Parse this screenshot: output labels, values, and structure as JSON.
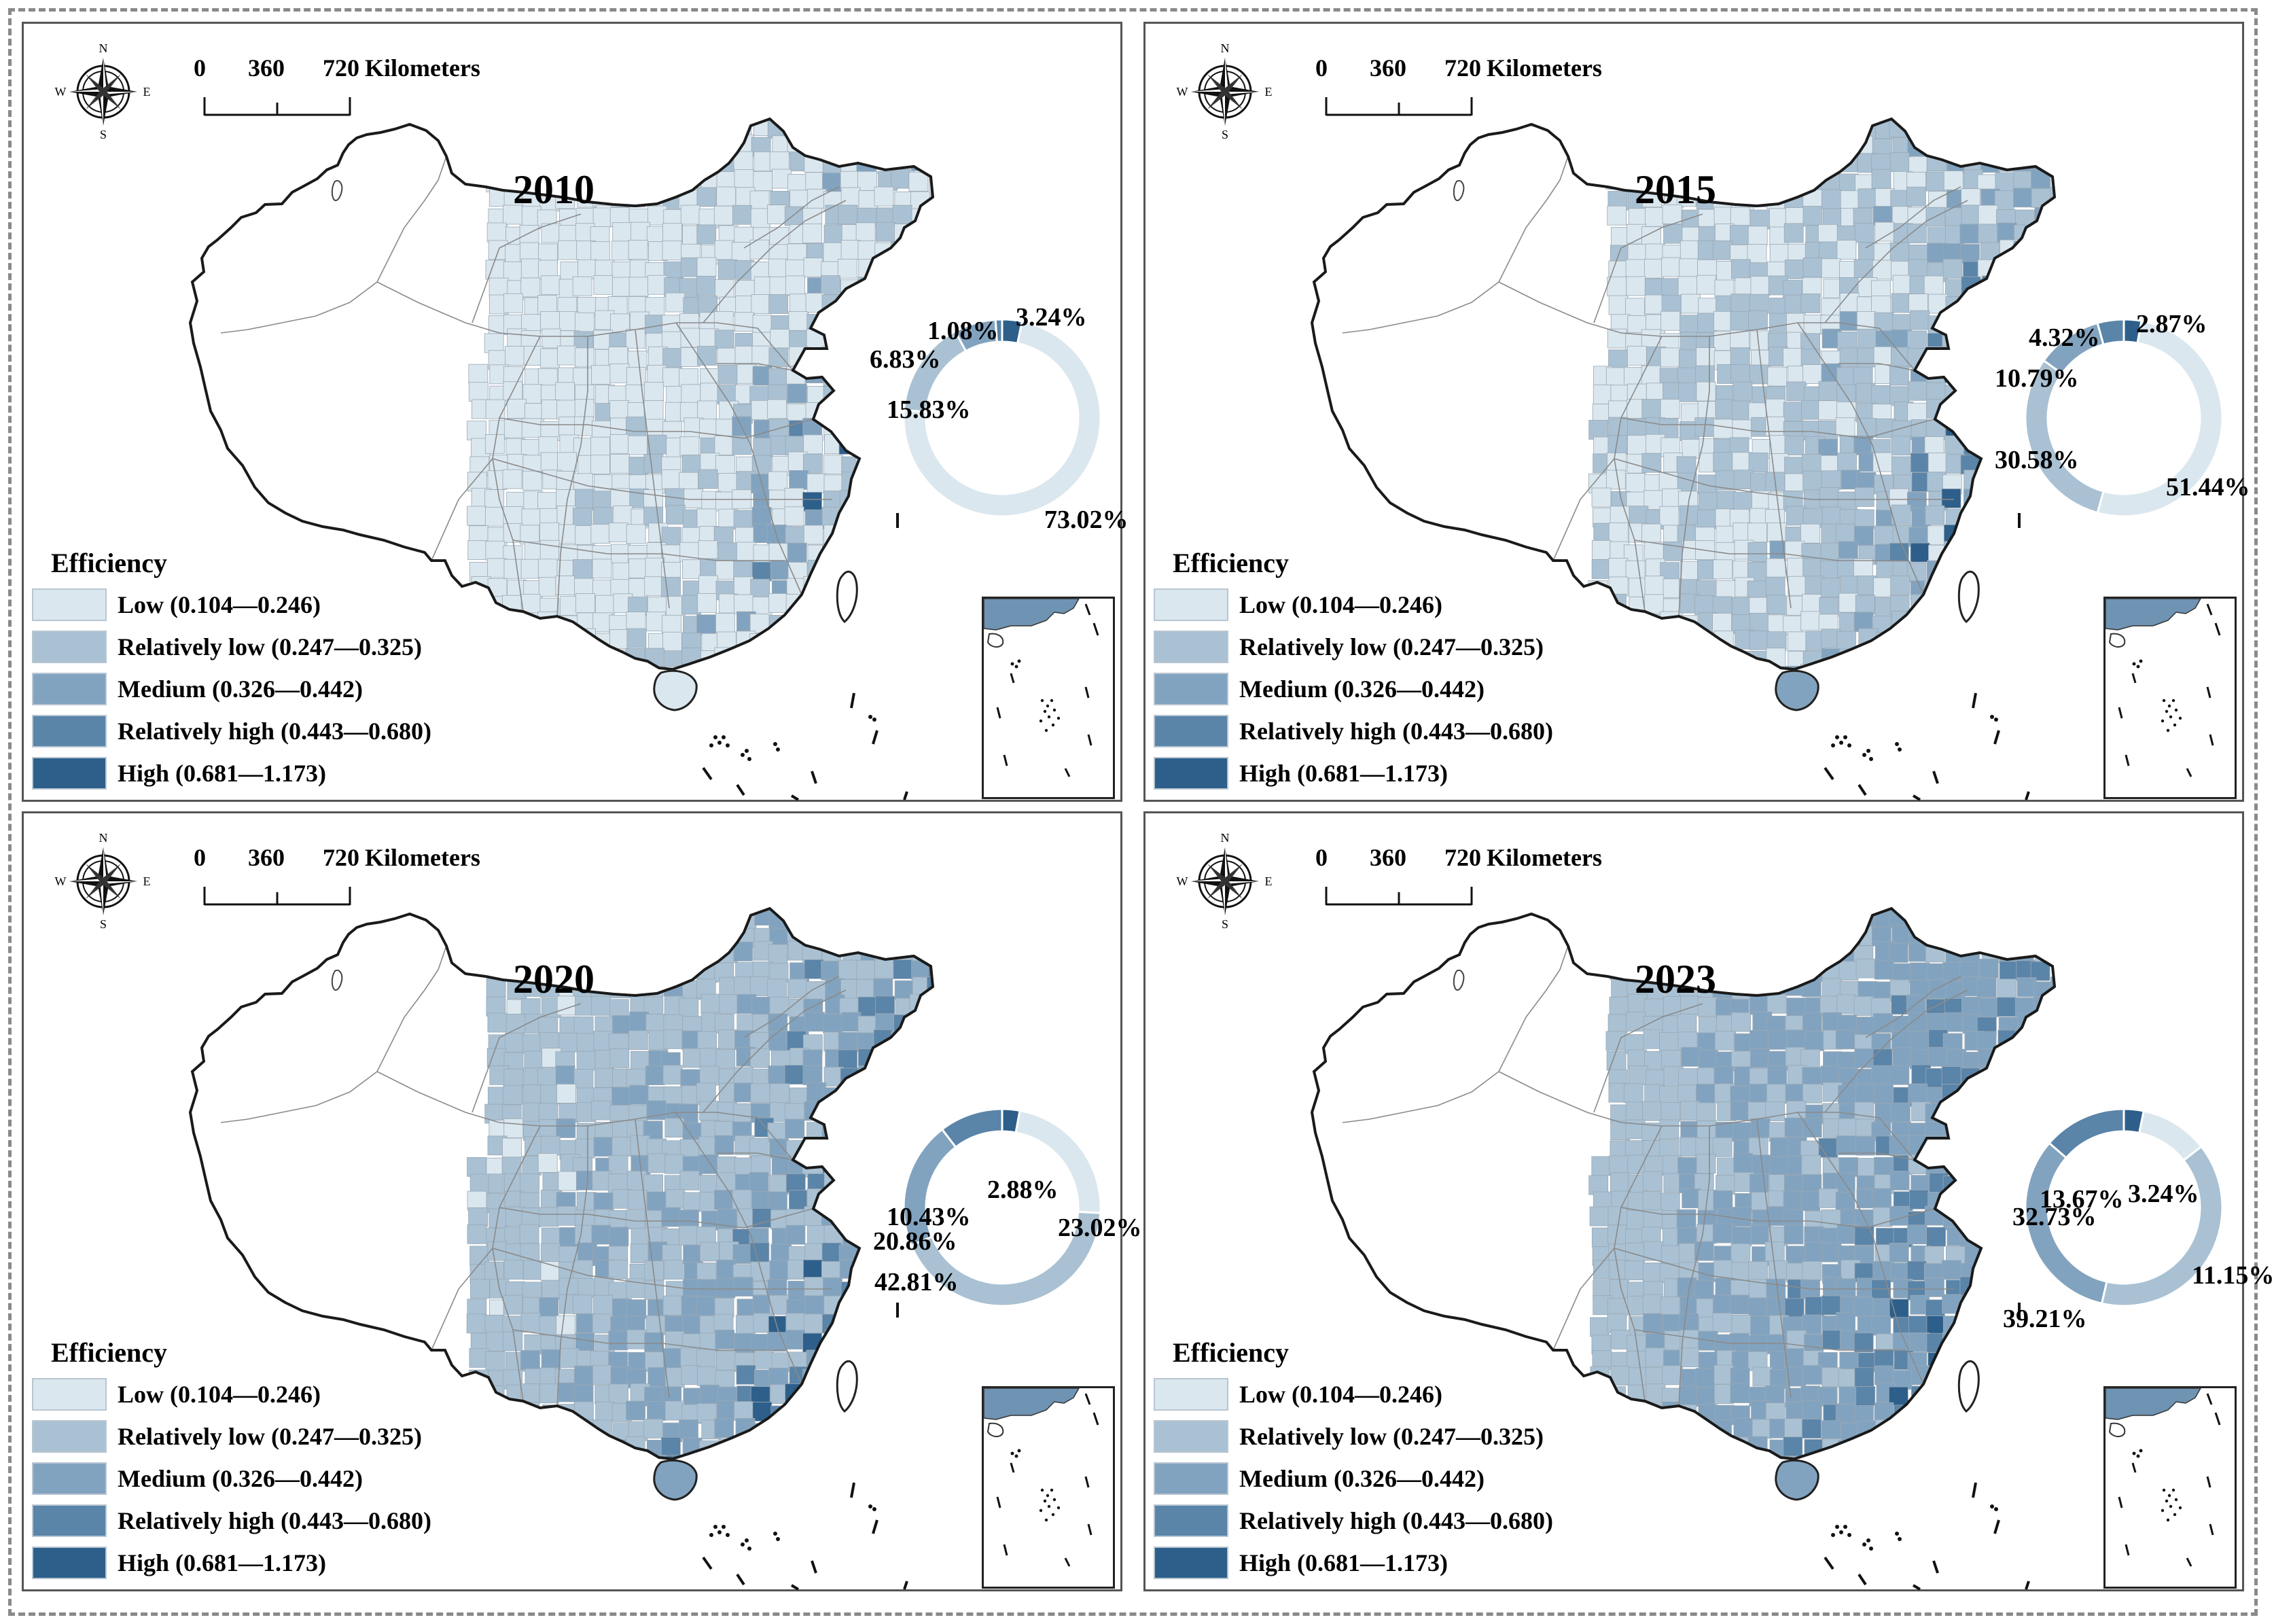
{
  "scale": {
    "ticks": [
      "0",
      "360",
      "720"
    ],
    "unit": "Kilometers"
  },
  "compass": {
    "n": "N",
    "s": "S",
    "e": "E",
    "w": "W",
    "icon": "compass-rose-icon"
  },
  "legend": {
    "title": "Efficiency",
    "classes": [
      {
        "label": "Low (0.104—0.246)",
        "color": "#dbe7ee"
      },
      {
        "label": "Relatively low (0.247—0.325)",
        "color": "#a9c1d3"
      },
      {
        "label": "Medium (0.326—0.442)",
        "color": "#82a3bf"
      },
      {
        "label": "Relatively high (0.443—0.680)",
        "color": "#5a84a8"
      },
      {
        "label": "High (0.681—1.173)",
        "color": "#2d5f8a"
      }
    ]
  },
  "panels": [
    {
      "year": "2010",
      "shares": [
        {
          "cls": "Low",
          "value": 73.02,
          "label": "73.02%"
        },
        {
          "cls": "Relatively low",
          "value": 15.83,
          "label": "15.83%"
        },
        {
          "cls": "Medium",
          "value": 6.83,
          "label": "6.83%"
        },
        {
          "cls": "Relatively high",
          "value": 1.08,
          "label": "1.08%"
        },
        {
          "cls": "High",
          "value": 3.24,
          "label": "3.24%"
        }
      ],
      "map_class_weights": [
        0.73,
        0.16,
        0.07,
        0.01,
        0.03
      ]
    },
    {
      "year": "2015",
      "shares": [
        {
          "cls": "Low",
          "value": 51.44,
          "label": "51.44%"
        },
        {
          "cls": "Relatively low",
          "value": 30.58,
          "label": "30.58%"
        },
        {
          "cls": "Medium",
          "value": 10.79,
          "label": "10.79%"
        },
        {
          "cls": "Relatively high",
          "value": 4.32,
          "label": "4.32%"
        },
        {
          "cls": "High",
          "value": 2.87,
          "label": "2.87%"
        }
      ],
      "map_class_weights": [
        0.51,
        0.31,
        0.11,
        0.04,
        0.03
      ]
    },
    {
      "year": "2020",
      "shares": [
        {
          "cls": "Low",
          "value": 23.02,
          "label": "23.02%"
        },
        {
          "cls": "Relatively low",
          "value": 42.81,
          "label": "42.81%"
        },
        {
          "cls": "Medium",
          "value": 20.86,
          "label": "20.86%"
        },
        {
          "cls": "Relatively high",
          "value": 10.43,
          "label": "10.43%"
        },
        {
          "cls": "High",
          "value": 2.88,
          "label": "2.88%"
        }
      ],
      "map_class_weights": [
        0.23,
        0.43,
        0.21,
        0.1,
        0.03
      ]
    },
    {
      "year": "2023",
      "shares": [
        {
          "cls": "Low",
          "value": 11.15,
          "label": "11.15%"
        },
        {
          "cls": "Relatively low",
          "value": 39.21,
          "label": "39.21%"
        },
        {
          "cls": "Medium",
          "value": 32.73,
          "label": "32.73%"
        },
        {
          "cls": "Relatively high",
          "value": 13.67,
          "label": "13.67%"
        },
        {
          "cls": "High",
          "value": 3.24,
          "label": "3.24%"
        }
      ],
      "map_class_weights": [
        0.11,
        0.39,
        0.33,
        0.14,
        0.03
      ]
    }
  ]
}
